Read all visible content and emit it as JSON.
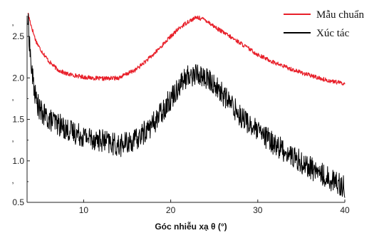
{
  "chart_data": {
    "type": "line",
    "title": "",
    "xlabel": "Góc nhiễu xạ θ (°)",
    "ylabel": "",
    "xlim": [
      3.5,
      40
    ],
    "ylim": [
      0.5,
      2.75
    ],
    "grid": false,
    "legend_position": "top-right",
    "x_ticks": [
      "10",
      "20",
      "30",
      "40"
    ],
    "y_ticks": [
      "0.5",
      "1.0",
      "1.5",
      "2.0",
      "2.5"
    ],
    "y_minor_tick_labels": [
      ",",
      ",",
      ",",
      ","
    ],
    "series": [
      {
        "name": "Mẫu chuẩn",
        "color": "#e8202a",
        "x": [
          3.6,
          4.0,
          4.5,
          5.0,
          6.0,
          7.0,
          8.0,
          10.0,
          12.0,
          14.0,
          16.0,
          18.0,
          20.0,
          21.0,
          22.0,
          23.0,
          24.0,
          25.0,
          26.0,
          28.0,
          30.0,
          32.0,
          34.0,
          36.0,
          38.0,
          39.5,
          40.0
        ],
        "values": [
          2.78,
          2.62,
          2.45,
          2.35,
          2.2,
          2.1,
          2.05,
          2.01,
          1.99,
          2.0,
          2.1,
          2.28,
          2.5,
          2.6,
          2.68,
          2.73,
          2.7,
          2.62,
          2.55,
          2.42,
          2.28,
          2.18,
          2.1,
          2.03,
          1.97,
          1.94,
          1.93
        ]
      },
      {
        "name": "Xúc tác",
        "color": "#000000",
        "x": [
          3.6,
          4.0,
          4.5,
          5.0,
          6.0,
          7.0,
          8.0,
          10.0,
          12.0,
          14.0,
          16.0,
          18.0,
          20.0,
          21.0,
          22.0,
          23.0,
          24.0,
          25.0,
          26.0,
          28.0,
          30.0,
          32.0,
          34.0,
          36.0,
          38.0,
          39.5,
          40.0
        ],
        "values": [
          2.7,
          2.1,
          1.75,
          1.6,
          1.5,
          1.45,
          1.38,
          1.3,
          1.25,
          1.18,
          1.25,
          1.45,
          1.75,
          1.92,
          2.02,
          2.05,
          2.0,
          1.92,
          1.8,
          1.55,
          1.35,
          1.2,
          1.05,
          0.92,
          0.8,
          0.72,
          0.68
        ]
      }
    ]
  }
}
